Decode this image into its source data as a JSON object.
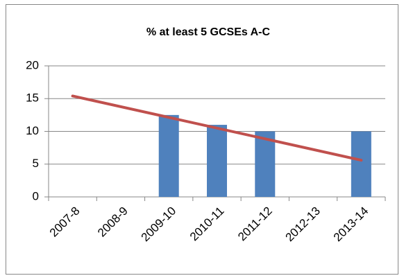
{
  "chart_data": {
    "type": "bar",
    "title": "% at least 5 GCSEs  A-C",
    "categories": [
      "2007-8",
      "2008-9",
      "2009-10",
      "2010-11",
      "2011-12",
      "2012-13",
      "2013-14"
    ],
    "values": [
      null,
      null,
      12.5,
      11,
      10,
      null,
      10
    ],
    "color": "#4f81bd",
    "ylim": [
      0,
      20
    ],
    "yticks": [
      0,
      5,
      10,
      15,
      20
    ],
    "grid": true,
    "trendline": {
      "color": "#c0504d",
      "values": [
        15.4,
        5.6
      ]
    }
  }
}
